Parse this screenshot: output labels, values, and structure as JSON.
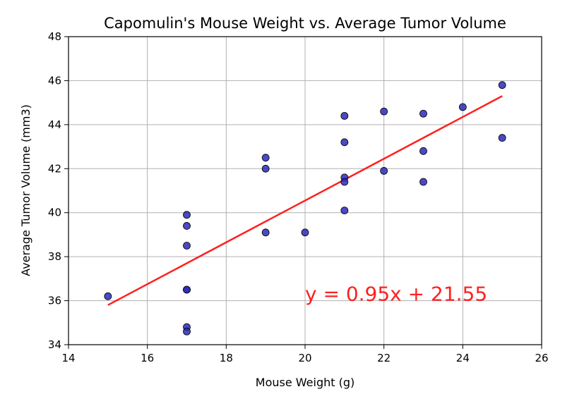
{
  "chart_data": {
    "type": "scatter",
    "title": "Capomulin's Mouse Weight vs. Average Tumor Volume",
    "xlabel": "Mouse Weight (g)",
    "ylabel": "Average Tumor Volume (mm3)",
    "xlim": [
      14,
      26
    ],
    "ylim": [
      34,
      48
    ],
    "xticks": [
      14,
      16,
      18,
      20,
      22,
      24,
      26
    ],
    "yticks": [
      34,
      36,
      38,
      40,
      42,
      44,
      46,
      48
    ],
    "grid": true,
    "legend": "none",
    "point_color": "#2a2ab8",
    "point_edge_color": "#000000",
    "line_color": "#ff2020",
    "points": [
      {
        "x": 15,
        "y": 36.2
      },
      {
        "x": 17,
        "y": 39.9
      },
      {
        "x": 17,
        "y": 39.4
      },
      {
        "x": 17,
        "y": 38.5
      },
      {
        "x": 17,
        "y": 36.5
      },
      {
        "x": 17,
        "y": 36.5
      },
      {
        "x": 17,
        "y": 34.8
      },
      {
        "x": 17,
        "y": 34.6
      },
      {
        "x": 19,
        "y": 42.5
      },
      {
        "x": 19,
        "y": 42.0
      },
      {
        "x": 19,
        "y": 39.1
      },
      {
        "x": 20,
        "y": 39.1
      },
      {
        "x": 21,
        "y": 44.4
      },
      {
        "x": 21,
        "y": 43.2
      },
      {
        "x": 21,
        "y": 41.6
      },
      {
        "x": 21,
        "y": 41.4
      },
      {
        "x": 21,
        "y": 40.1
      },
      {
        "x": 22,
        "y": 44.6
      },
      {
        "x": 22,
        "y": 41.9
      },
      {
        "x": 23,
        "y": 44.5
      },
      {
        "x": 23,
        "y": 42.8
      },
      {
        "x": 23,
        "y": 41.4
      },
      {
        "x": 24,
        "y": 44.8
      },
      {
        "x": 25,
        "y": 45.8
      },
      {
        "x": 25,
        "y": 43.4
      }
    ],
    "regression": {
      "slope": 0.95,
      "intercept": 21.55,
      "x_range": [
        15,
        25
      ],
      "equation": "y = 0.95x + 21.55",
      "label_position": {
        "x": 20,
        "y": 36
      }
    }
  }
}
